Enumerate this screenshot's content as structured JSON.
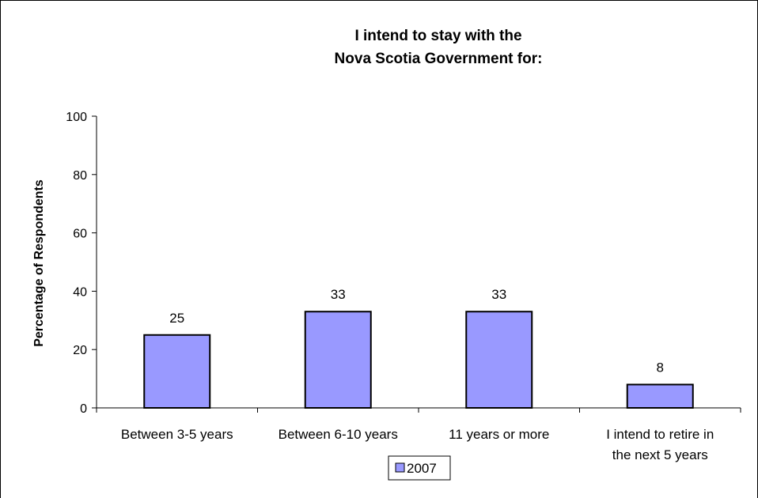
{
  "chart_data": {
    "type": "bar",
    "title_lines": [
      "I intend to stay with the",
      "Nova Scotia Government for:"
    ],
    "ylabel": "Percentage of Respondents",
    "xlabel": "",
    "ylim": [
      0,
      100
    ],
    "yticks": [
      "0",
      "20",
      "40",
      "60",
      "80",
      "100"
    ],
    "categories": [
      [
        "Between 3-5 years"
      ],
      [
        "Between 6-10 years"
      ],
      [
        "11 years or more"
      ],
      [
        "I intend to retire in",
        "the next 5 years"
      ]
    ],
    "series": [
      {
        "name": "2007",
        "values": [
          25,
          33,
          33,
          8
        ],
        "labels": [
          "25",
          "33",
          "33",
          "8"
        ],
        "color": "#9999ff"
      }
    ],
    "grid": false,
    "legend_position": "bottom"
  }
}
